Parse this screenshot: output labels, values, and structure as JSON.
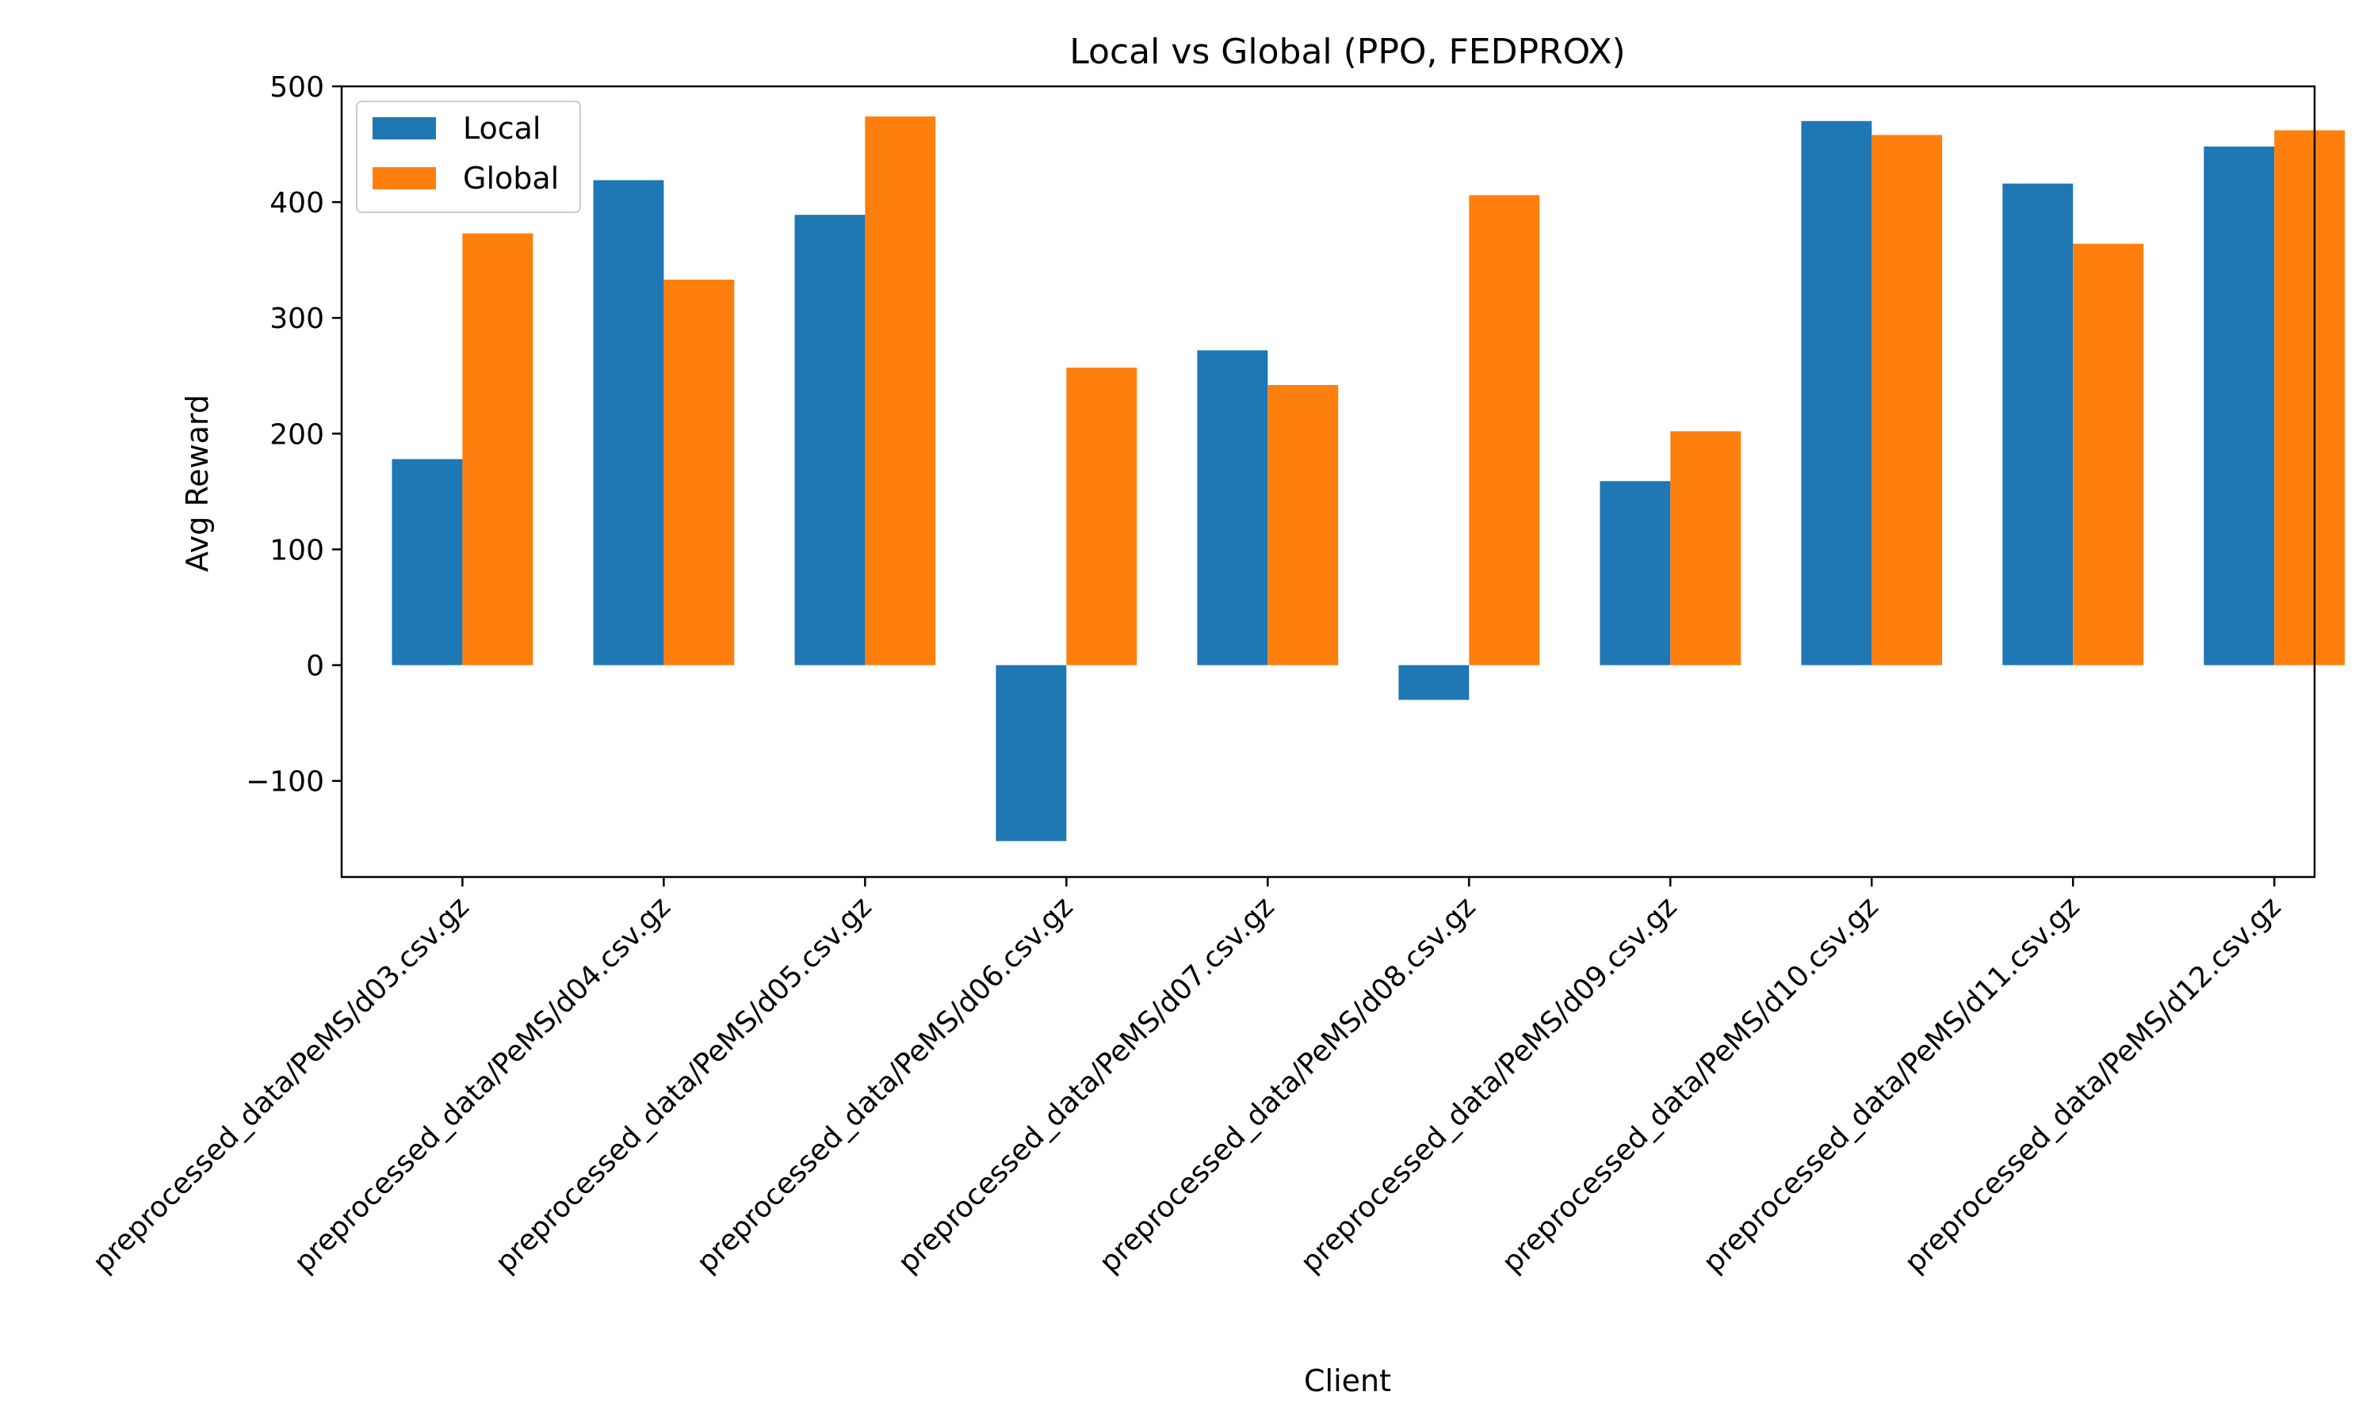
{
  "chart_data": {
    "type": "bar",
    "title": "Local vs Global (PPO, FEDPROX)",
    "xlabel": "Client",
    "ylabel": "Avg Reward",
    "ylim": [
      -183,
      500
    ],
    "yticks": [
      -100,
      0,
      100,
      200,
      300,
      400,
      500
    ],
    "ytick_labels": [
      "−100",
      "0",
      "100",
      "200",
      "300",
      "400",
      "500"
    ],
    "legend_position": "top-left",
    "categories": [
      "preprocessed_data/PeMS/d03.csv.gz",
      "preprocessed_data/PeMS/d04.csv.gz",
      "preprocessed_data/PeMS/d05.csv.gz",
      "preprocessed_data/PeMS/d06.csv.gz",
      "preprocessed_data/PeMS/d07.csv.gz",
      "preprocessed_data/PeMS/d08.csv.gz",
      "preprocessed_data/PeMS/d09.csv.gz",
      "preprocessed_data/PeMS/d10.csv.gz",
      "preprocessed_data/PeMS/d11.csv.gz",
      "preprocessed_data/PeMS/d12.csv.gz"
    ],
    "series": [
      {
        "name": "Local",
        "color": "#1f77b4",
        "values": [
          178,
          419,
          389,
          -152,
          272,
          -30,
          159,
          470,
          416,
          448
        ]
      },
      {
        "name": "Global",
        "color": "#ff7f0e",
        "values": [
          373,
          333,
          474,
          257,
          242,
          406,
          202,
          458,
          364,
          462
        ]
      }
    ]
  }
}
